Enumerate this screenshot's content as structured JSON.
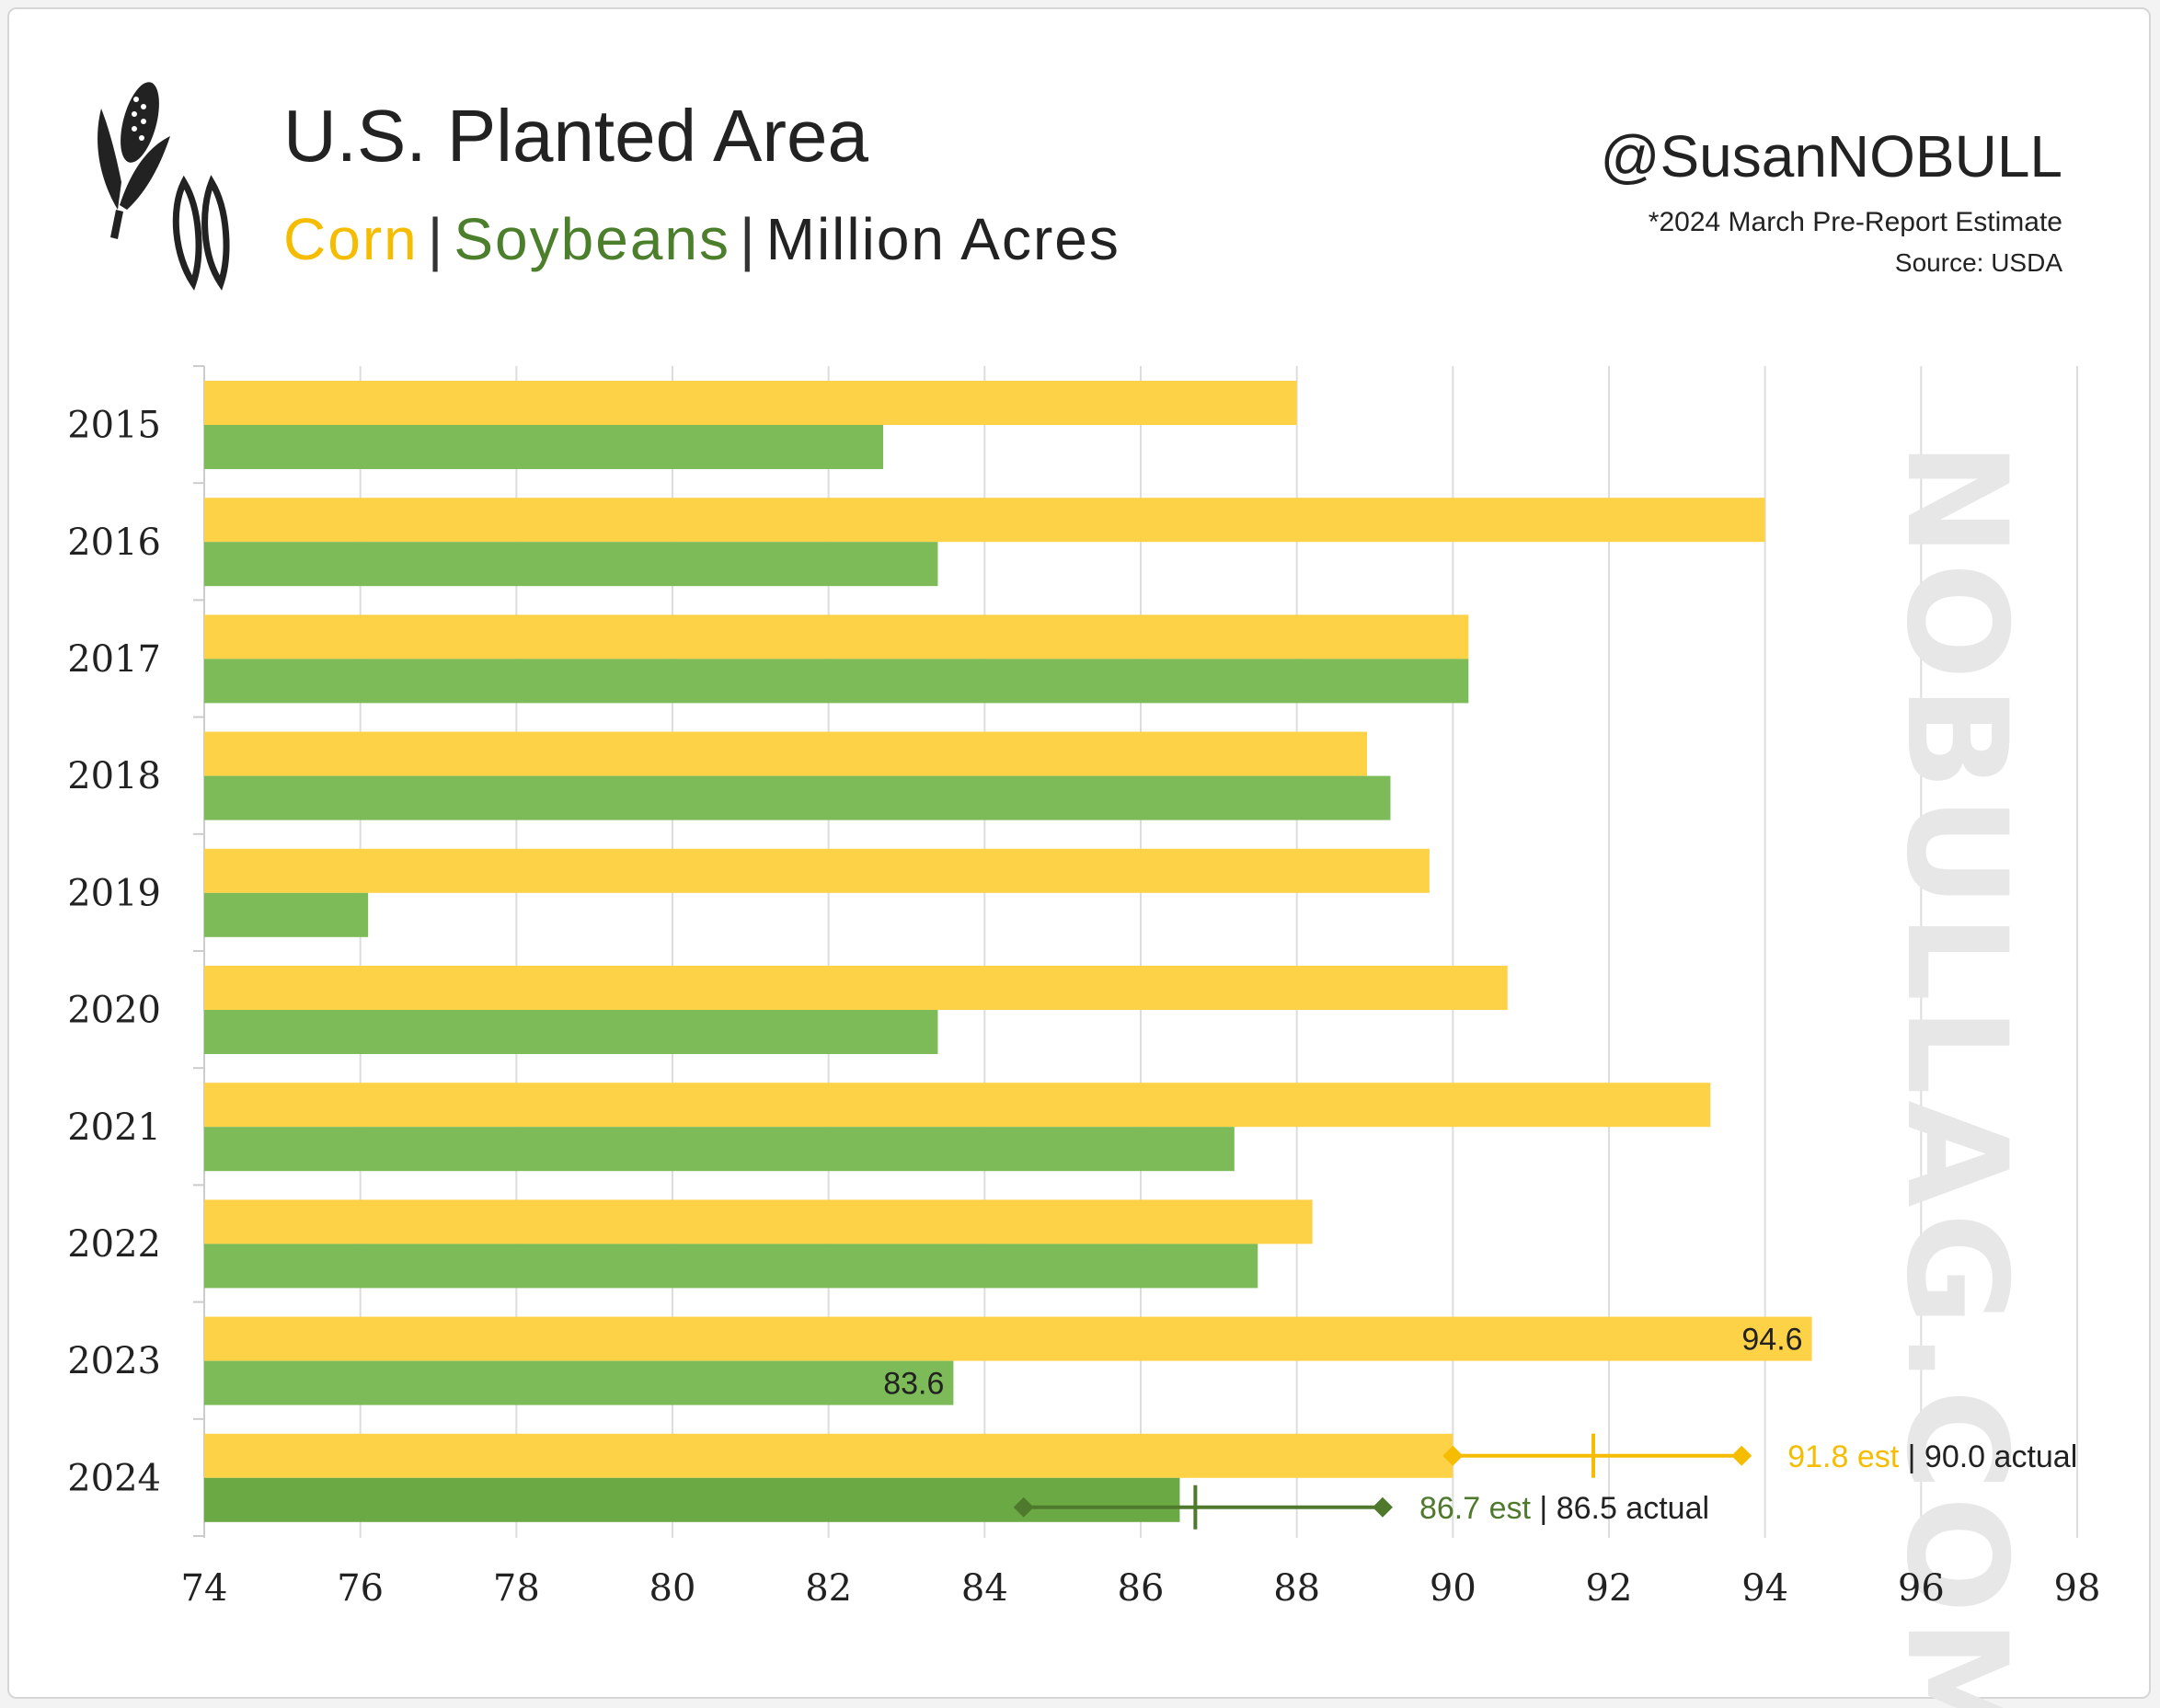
{
  "header": {
    "title": "U.S. Planted Area",
    "subtitle": {
      "corn": "Corn",
      "soybeans": "Soybeans",
      "unit": "Million Acres",
      "separator": "|"
    },
    "handle": "@SusanNOBULL",
    "note": "*2024 March Pre-Report Estimate",
    "source": "Source: USDA"
  },
  "watermark": "NOBULLAG.COM",
  "colors": {
    "corn": "#FDD247",
    "soybeans": "#7DBB59",
    "soybeans_2024": "#6AA944",
    "corn_annotation": "#F5BC00",
    "soy_annotation": "#4F7A2E",
    "grid": "#dddddd",
    "title_corn": "#F5BC00",
    "title_soy": "#4C7F2B"
  },
  "chart_data": {
    "type": "bar",
    "orientation": "horizontal",
    "categories": [
      "2015",
      "2016",
      "2017",
      "2018",
      "2019",
      "2020",
      "2021",
      "2022",
      "2023",
      "2024"
    ],
    "series": [
      {
        "name": "Corn",
        "values": [
          88.0,
          94.0,
          90.2,
          88.9,
          89.7,
          90.7,
          93.3,
          88.2,
          94.6,
          90.0
        ]
      },
      {
        "name": "Soybeans",
        "values": [
          82.7,
          83.4,
          90.2,
          89.2,
          76.1,
          83.4,
          87.2,
          87.5,
          83.6,
          86.5
        ]
      }
    ],
    "xlim": [
      74,
      98
    ],
    "xticks": [
      "74",
      "76",
      "78",
      "80",
      "82",
      "84",
      "86",
      "88",
      "90",
      "92",
      "94",
      "96",
      "98"
    ],
    "grid": true,
    "data_labels": [
      {
        "category": "2023",
        "series": "Corn",
        "text": "94.6"
      },
      {
        "category": "2023",
        "series": "Soybeans",
        "text": "83.6"
      }
    ],
    "estimates_2024": {
      "corn": {
        "estimate": 91.8,
        "range": [
          90.0,
          93.7
        ],
        "est_label": "91.8 est",
        "actual_label": "90.0 actual"
      },
      "soybeans": {
        "estimate": 86.7,
        "range": [
          84.5,
          89.1
        ],
        "est_label": "86.7 est",
        "actual_label": "86.5 actual"
      }
    }
  }
}
